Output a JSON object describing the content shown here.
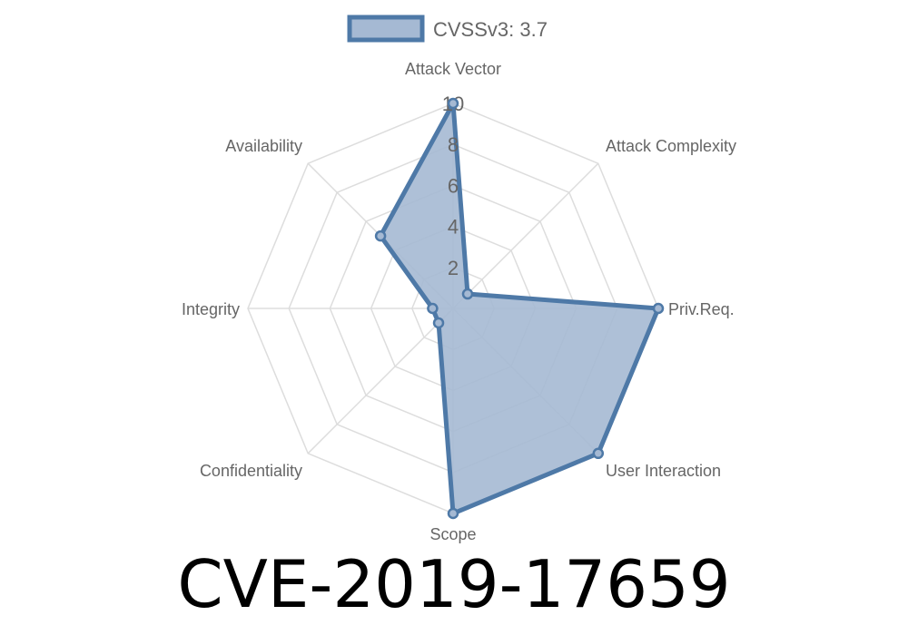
{
  "chart_data": {
    "type": "radar",
    "axes": [
      "Attack Vector",
      "Attack Complexity",
      "Priv.Req.",
      "User Interaction",
      "Scope",
      "Confidentiality",
      "Integrity",
      "Availability"
    ],
    "series": [
      {
        "name": "CVSSv3: 3.7",
        "values": [
          10,
          1,
          10,
          10,
          10,
          1,
          1,
          5
        ]
      }
    ],
    "rlim": [
      0,
      10
    ],
    "ticks": [
      "2",
      "4",
      "6",
      "8",
      "10"
    ],
    "tick_values": [
      2,
      4,
      6,
      8,
      10
    ],
    "grid": true,
    "legend_position": "top",
    "colors": {
      "line": "#4e79a7",
      "fill": "#a5b9d3",
      "grid": "#dddddd"
    }
  },
  "footer_title": "CVE-2019-17659"
}
